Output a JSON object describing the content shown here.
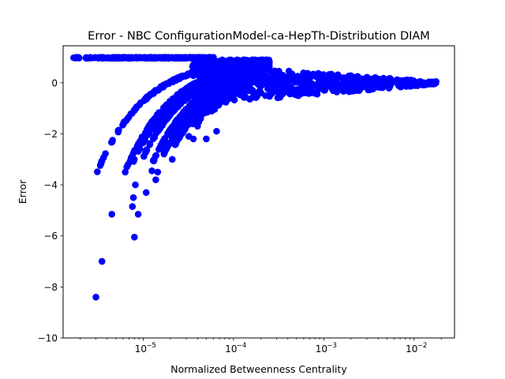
{
  "chart_data": {
    "type": "scatter",
    "title": "Error - NBC ConfigurationModel-ca-HepTh-Distribution DIAM",
    "xlabel": "Normalized Betweenness Centrality",
    "ylabel": "Error",
    "xscale": "log",
    "xlim": [
      1.3e-06,
      0.028
    ],
    "ylim": [
      -10,
      1.45
    ],
    "x_ticks": [
      {
        "value": 1e-05,
        "label": "10",
        "exp": "−5"
      },
      {
        "value": 0.0001,
        "label": "10",
        "exp": "−4"
      },
      {
        "value": 0.001,
        "label": "10",
        "exp": "−3"
      },
      {
        "value": 0.01,
        "label": "10",
        "exp": "−2"
      }
    ],
    "y_ticks": [
      {
        "value": 0,
        "label": "0"
      },
      {
        "value": -2,
        "label": "−2"
      },
      {
        "value": -4,
        "label": "−4"
      },
      {
        "value": -6,
        "label": "−6"
      },
      {
        "value": -8,
        "label": "−8"
      },
      {
        "value": -10,
        "label": "−10"
      }
    ],
    "grid": false,
    "marker_color": "#0000ff",
    "curves": [
      {
        "x_start": 3.1e-06,
        "y_start": -3.5,
        "k": 0.82
      },
      {
        "x_start": 5.8e-06,
        "y_start": -3.8,
        "k": 0.82
      },
      {
        "x_start": 7.5e-06,
        "y_start": -3.2,
        "k": 0.82
      },
      {
        "x_start": 9.8e-06,
        "y_start": -3.0,
        "k": 0.82
      },
      {
        "x_start": 1.25e-05,
        "y_start": -3.2,
        "k": 0.82
      },
      {
        "x_start": 1.7e-05,
        "y_start": -2.8,
        "k": 0.82
      },
      {
        "x_start": 2.2e-05,
        "y_start": -2.5,
        "k": 0.82
      }
    ],
    "top_line": {
      "y": 1.0,
      "x_min": 1.7e-06,
      "x_max": 6e-05
    },
    "outliers": [
      [
        3e-06,
        -8.4
      ],
      [
        3.5e-06,
        -7.0
      ],
      [
        4.5e-06,
        -5.15
      ],
      [
        8e-06,
        -6.05
      ],
      [
        8.8e-06,
        -5.15
      ],
      [
        7.6e-06,
        -4.85
      ],
      [
        7.8e-06,
        -4.5
      ],
      [
        8.2e-06,
        -4.0
      ],
      [
        1.08e-05,
        -4.3
      ],
      [
        1.25e-05,
        -3.45
      ],
      [
        1.32e-05,
        -3.0
      ],
      [
        1.38e-05,
        -3.8
      ],
      [
        1.45e-05,
        -3.5
      ],
      [
        2.1e-05,
        -3.0
      ],
      [
        3.2e-05,
        -2.1
      ],
      [
        3.6e-05,
        -2.2
      ],
      [
        5e-05,
        -2.2
      ],
      [
        6.5e-05,
        -1.9
      ],
      [
        2.7e-05,
        -1.6
      ],
      [
        4e-05,
        -1.7
      ]
    ],
    "tail": {
      "x_min": 8e-05,
      "x_max": 0.0175,
      "final_point": [
        0.0175,
        0.05
      ]
    }
  }
}
